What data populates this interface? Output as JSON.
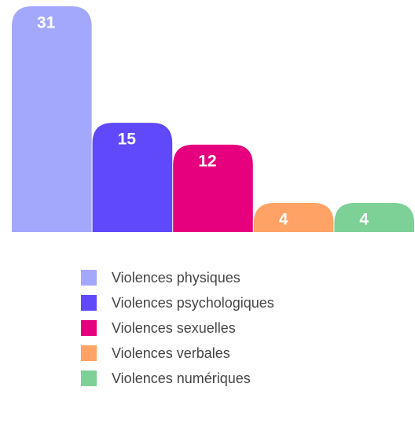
{
  "chart_data": {
    "type": "bar",
    "categories": [
      "Violences physiques",
      "Violences psychologiques",
      "Violences sexuelles",
      "Violences verbales",
      "Violences numériques"
    ],
    "values": [
      31,
      15,
      12,
      4,
      4
    ],
    "colors": [
      "#a3a8fd",
      "#5f49fb",
      "#e6007e",
      "#fea365",
      "#7dd096"
    ],
    "ylim": [
      0,
      31
    ],
    "legend": "bottom"
  }
}
